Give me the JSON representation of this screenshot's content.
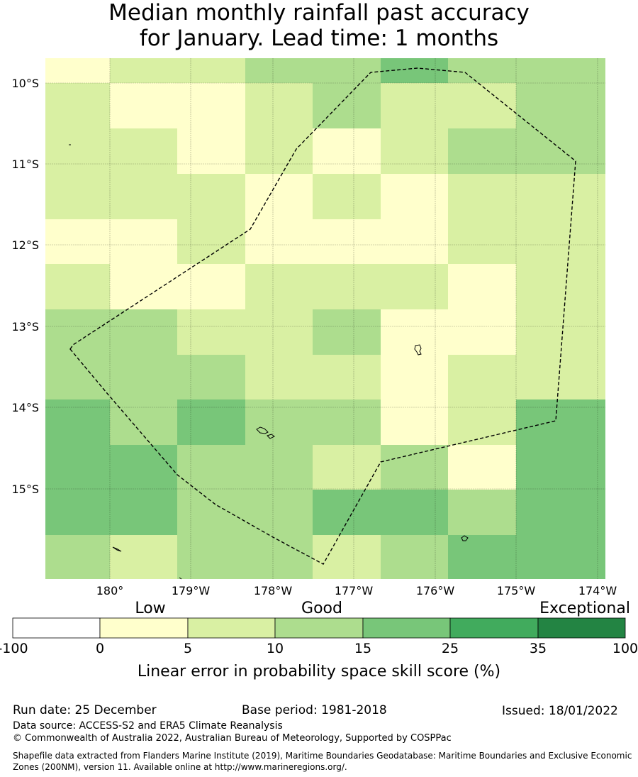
{
  "title": {
    "line1": "Median monthly rainfall past accuracy",
    "line2": "for January. Lead time: 1 months"
  },
  "map": {
    "lat_labels": [
      "10°S",
      "11°S",
      "12°S",
      "13°S",
      "14°S",
      "15°S"
    ],
    "lon_labels": [
      "180°",
      "179°W",
      "178°W",
      "177°W",
      "176°W",
      "175°W",
      "174°W"
    ],
    "grid_categories": [
      [
        1,
        2,
        2,
        3,
        3,
        4,
        3,
        3
      ],
      [
        2,
        1,
        1,
        2,
        3,
        2,
        2,
        3
      ],
      [
        2,
        2,
        1,
        2,
        1,
        2,
        3,
        3
      ],
      [
        2,
        2,
        2,
        1,
        2,
        1,
        2,
        2
      ],
      [
        1,
        1,
        2,
        1,
        1,
        1,
        2,
        2
      ],
      [
        2,
        1,
        1,
        2,
        2,
        2,
        1,
        2
      ],
      [
        3,
        3,
        2,
        2,
        3,
        1,
        1,
        2
      ],
      [
        3,
        3,
        3,
        2,
        2,
        1,
        2,
        2
      ],
      [
        4,
        3,
        4,
        3,
        3,
        1,
        2,
        4
      ],
      [
        4,
        4,
        3,
        3,
        2,
        3,
        1,
        4
      ],
      [
        4,
        4,
        3,
        3,
        4,
        4,
        3,
        4
      ],
      [
        3,
        2,
        3,
        3,
        2,
        3,
        4,
        4
      ]
    ]
  },
  "legend": {
    "category_labels": [
      "Low",
      "Good",
      "Exceptional"
    ],
    "ticks": [
      "-100",
      "0",
      "5",
      "10",
      "15",
      "25",
      "35",
      "100"
    ],
    "colors": [
      "#ffffff",
      "#ffffcc",
      "#d9f0a3",
      "#addd8e",
      "#78c679",
      "#41ab5d",
      "#238443"
    ],
    "axis_label": "Linear error in probability space skill score (%)"
  },
  "footer": {
    "run_date": "Run date: 25 December",
    "base_period": "Base period: 1981-2018",
    "issued": "Issued: 18/01/2022",
    "data_source": "Data source: ACCESS-S2 and ERA5 Climate Reanalysis",
    "copyright": "© Commonwealth of Australia 2022, Australian Bureau of Meteorology, Supported by COSPPac",
    "shapefile": "Shapefile data extracted from Flanders Marine Institute (2019), Maritime Boundaries Geodatabase: Maritime Boundaries and Exclusive Economic Zones (200NM), version 11. Available online at http://www.marineregions.org/."
  }
}
